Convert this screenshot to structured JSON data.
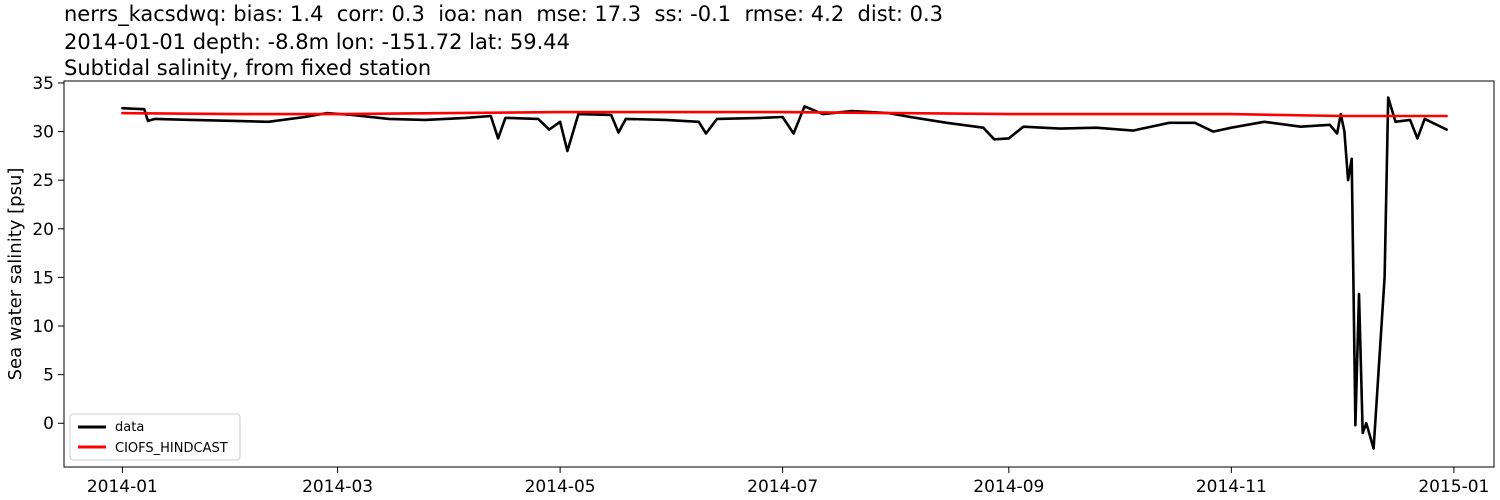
{
  "titles": {
    "line1": "nerrs_kacsdwq: bias: 1.4  corr: 0.3  ioa: nan  mse: 17.3  ss: -0.1  rmse: 4.2  dist: 0.3",
    "line2": "2014-01-01 depth: -8.8m lon: -151.72 lat: 59.44",
    "line3": "Subtidal salinity, from fixed station"
  },
  "chart_data": {
    "type": "line",
    "title": "Subtidal salinity, from fixed station",
    "xlabel": "",
    "ylabel": "Sea water salinity [psu]",
    "xlim": [
      "2013-12-16",
      "2015-01-12"
    ],
    "ylim": [
      -4.5,
      35.2
    ],
    "x_ticks": [
      "2014-01",
      "2014-03",
      "2014-05",
      "2014-07",
      "2014-09",
      "2014-11",
      "2015-01"
    ],
    "x_tick_dates": [
      "2014-01-01",
      "2014-03-01",
      "2014-05-01",
      "2014-07-01",
      "2014-09-01",
      "2014-11-01",
      "2015-01-01"
    ],
    "y_ticks": [
      0,
      5,
      10,
      15,
      20,
      25,
      30,
      35
    ],
    "grid": false,
    "legend": {
      "placement": "lower-left",
      "entries": [
        "data",
        "CIOFS_HINDCAST"
      ]
    },
    "series": [
      {
        "name": "data",
        "color": "#000000",
        "points": [
          [
            "2014-01-01",
            32.4
          ],
          [
            "2014-01-07",
            32.3
          ],
          [
            "2014-01-08",
            31.1
          ],
          [
            "2014-01-10",
            31.3
          ],
          [
            "2014-01-20",
            31.2
          ],
          [
            "2014-02-01",
            31.1
          ],
          [
            "2014-02-10",
            31.0
          ],
          [
            "2014-02-20",
            31.5
          ],
          [
            "2014-02-26",
            31.9
          ],
          [
            "2014-03-05",
            31.7
          ],
          [
            "2014-03-15",
            31.3
          ],
          [
            "2014-03-25",
            31.2
          ],
          [
            "2014-04-05",
            31.4
          ],
          [
            "2014-04-12",
            31.6
          ],
          [
            "2014-04-14",
            29.3
          ],
          [
            "2014-04-16",
            31.4
          ],
          [
            "2014-04-25",
            31.3
          ],
          [
            "2014-04-28",
            30.2
          ],
          [
            "2014-05-01",
            31.0
          ],
          [
            "2014-05-03",
            28.0
          ],
          [
            "2014-05-06",
            31.8
          ],
          [
            "2014-05-15",
            31.7
          ],
          [
            "2014-05-17",
            29.9
          ],
          [
            "2014-05-19",
            31.3
          ],
          [
            "2014-05-30",
            31.2
          ],
          [
            "2014-06-08",
            31.0
          ],
          [
            "2014-06-10",
            29.8
          ],
          [
            "2014-06-13",
            31.3
          ],
          [
            "2014-06-25",
            31.4
          ],
          [
            "2014-07-01",
            31.5
          ],
          [
            "2014-07-04",
            29.8
          ],
          [
            "2014-07-07",
            32.6
          ],
          [
            "2014-07-12",
            31.8
          ],
          [
            "2014-07-20",
            32.1
          ],
          [
            "2014-07-30",
            31.9
          ],
          [
            "2014-08-05",
            31.5
          ],
          [
            "2014-08-15",
            30.9
          ],
          [
            "2014-08-25",
            30.4
          ],
          [
            "2014-08-28",
            29.2
          ],
          [
            "2014-09-01",
            29.3
          ],
          [
            "2014-09-05",
            30.5
          ],
          [
            "2014-09-15",
            30.3
          ],
          [
            "2014-09-25",
            30.4
          ],
          [
            "2014-10-05",
            30.1
          ],
          [
            "2014-10-15",
            30.9
          ],
          [
            "2014-10-22",
            30.9
          ],
          [
            "2014-10-27",
            30.0
          ],
          [
            "2014-11-01",
            30.4
          ],
          [
            "2014-11-10",
            31.0
          ],
          [
            "2014-11-20",
            30.5
          ],
          [
            "2014-11-28",
            30.7
          ],
          [
            "2014-11-30",
            29.8
          ],
          [
            "2014-12-01",
            31.8
          ],
          [
            "2014-12-02",
            30.0
          ],
          [
            "2014-12-03",
            25.0
          ],
          [
            "2014-12-04",
            27.2
          ],
          [
            "2014-12-05",
            -0.2
          ],
          [
            "2014-12-06",
            13.3
          ],
          [
            "2014-12-07",
            -1.0
          ],
          [
            "2014-12-08",
            0.0
          ],
          [
            "2014-12-10",
            -2.6
          ],
          [
            "2014-12-13",
            15.0
          ],
          [
            "2014-12-14",
            33.5
          ],
          [
            "2014-12-16",
            31.0
          ],
          [
            "2014-12-20",
            31.2
          ],
          [
            "2014-12-22",
            29.3
          ],
          [
            "2014-12-24",
            31.3
          ],
          [
            "2014-12-30",
            30.2
          ]
        ]
      },
      {
        "name": "CIOFS_HINDCAST",
        "color": "#ff0000",
        "points": [
          [
            "2014-01-01",
            31.9
          ],
          [
            "2014-02-01",
            31.8
          ],
          [
            "2014-03-01",
            31.8
          ],
          [
            "2014-04-01",
            31.9
          ],
          [
            "2014-05-01",
            32.0
          ],
          [
            "2014-06-01",
            32.0
          ],
          [
            "2014-07-01",
            32.0
          ],
          [
            "2014-08-01",
            31.9
          ],
          [
            "2014-09-01",
            31.8
          ],
          [
            "2014-10-01",
            31.8
          ],
          [
            "2014-11-01",
            31.8
          ],
          [
            "2014-12-01",
            31.6
          ],
          [
            "2014-12-30",
            31.6
          ]
        ]
      }
    ]
  }
}
